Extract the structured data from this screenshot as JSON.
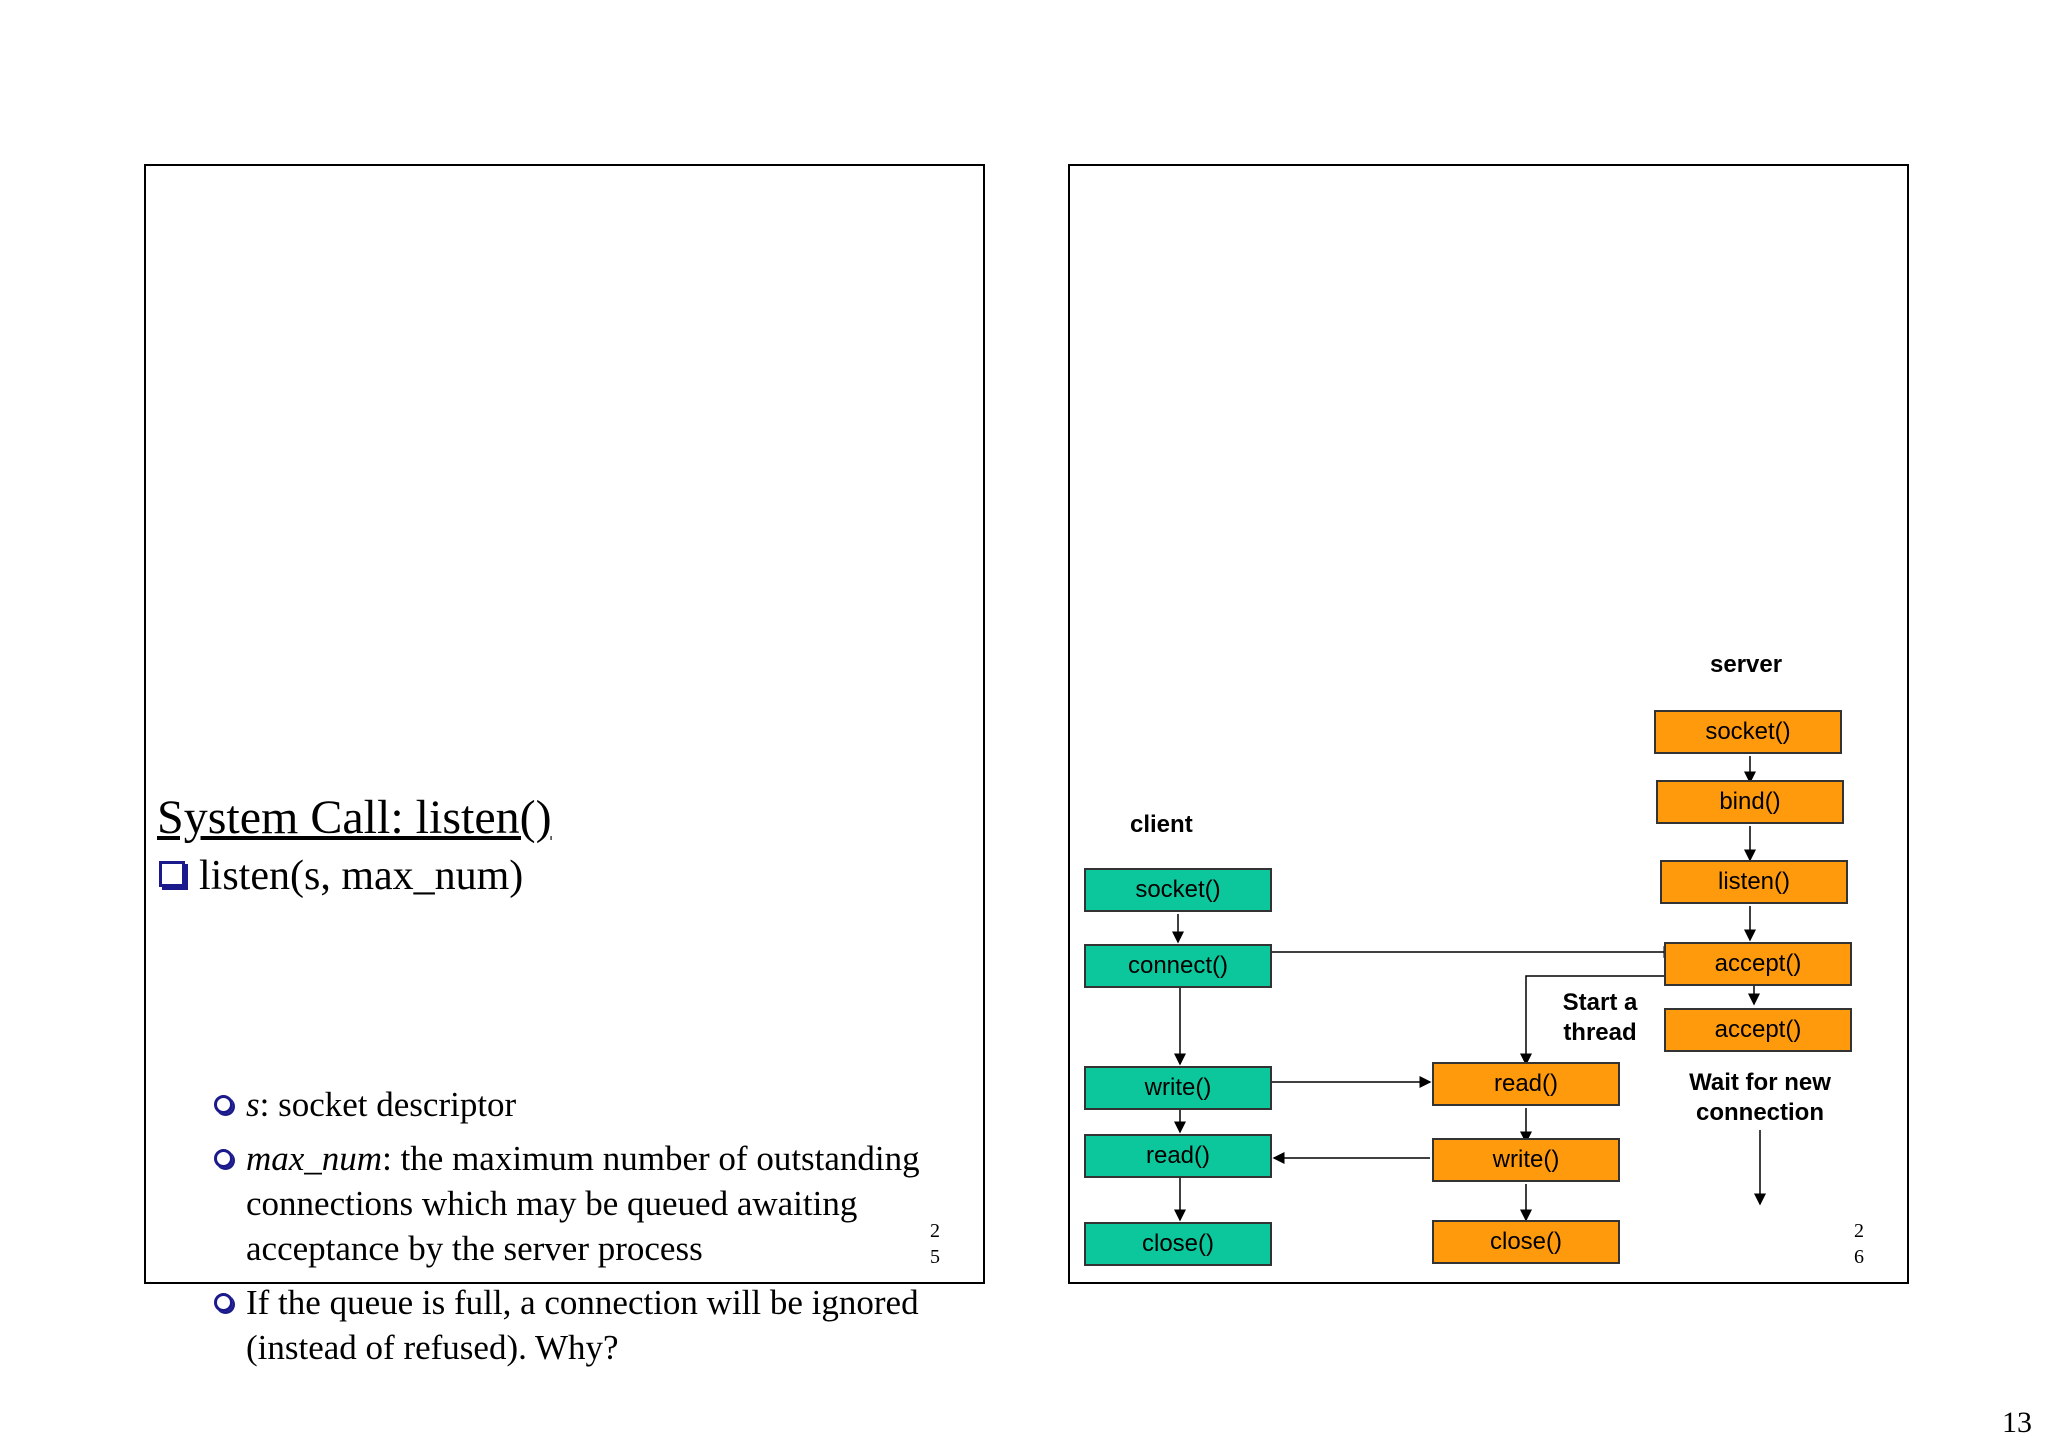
{
  "left_slide": {
    "title": "System Call: listen()",
    "bullet": "listen(s, max_num)",
    "subbullets": [
      {
        "term": "s",
        "text": ": socket descriptor"
      },
      {
        "term": "max_num",
        "text": ": the maximum number of outstanding connections which may be queued awaiting acceptance by the server process"
      },
      {
        "term": "",
        "text": "If the queue is full, a connection will be ignored (instead of refused). Why?"
      }
    ],
    "page_number": [
      "2",
      "5"
    ]
  },
  "right_slide": {
    "client_label": "client",
    "server_label": "server",
    "thread_label": "Start a thread",
    "wait_label": "Wait for new connection",
    "client_boxes": [
      "socket()",
      "connect()",
      "write()",
      "read()",
      "close()"
    ],
    "server_boxes": [
      "socket()",
      "bind()",
      "listen()",
      "accept()",
      "accept()"
    ],
    "thread_boxes": [
      "read()",
      "write()",
      "close()"
    ],
    "page_number": [
      "2",
      "6"
    ]
  },
  "page_footer_number": "13",
  "colors": {
    "client": "#0cc79b",
    "server": "#ff9a0d",
    "bullet": "#1a1a8c"
  }
}
